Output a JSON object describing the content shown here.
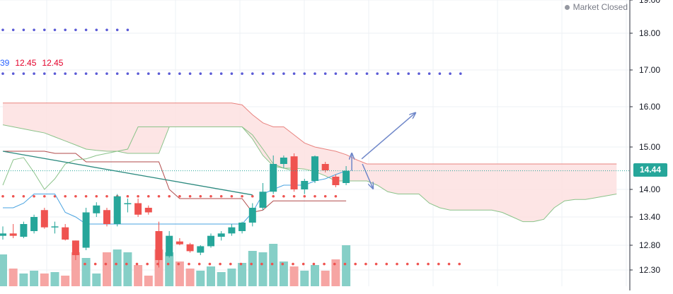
{
  "status": {
    "label": "Market Closed"
  },
  "legend": {
    "values": [
      "39",
      "12.45",
      "12.45"
    ]
  },
  "last_price": "14.44",
  "colors": {
    "up": "#26a69a",
    "down": "#ef5350",
    "vol_up": "#86cfc7",
    "vol_down": "#f6a5a3",
    "cloud_fill": "#fde0e0",
    "cloud_edge": "#e8837f",
    "chikou": "#8bc38a",
    "dots_blue": "#5b5bd6",
    "dots_red": "#ef5350",
    "trendline": "#2e8b80",
    "arrow": "#6f87c9",
    "grid": "#edf0f4"
  },
  "chart_data": {
    "type": "candlestick",
    "y_ticks": [
      "19.00",
      "18.00",
      "17.00",
      "16.00",
      "15.00",
      "14.00",
      "13.40",
      "12.80",
      "12.30"
    ],
    "y_tick_values": [
      19.0,
      18.0,
      17.0,
      16.0,
      15.0,
      14.0,
      13.4,
      12.8,
      12.3
    ],
    "candles": [
      {
        "o": 13.0,
        "h": 13.2,
        "l": 12.92,
        "c": 13.05
      },
      {
        "o": 13.05,
        "h": 13.25,
        "l": 12.95,
        "c": 13.0
      },
      {
        "o": 12.98,
        "h": 13.3,
        "l": 12.95,
        "c": 13.25
      },
      {
        "o": 13.1,
        "h": 13.45,
        "l": 13.05,
        "c": 13.4
      },
      {
        "o": 13.55,
        "h": 13.6,
        "l": 13.15,
        "c": 13.18
      },
      {
        "o": 13.2,
        "h": 13.3,
        "l": 13.05,
        "c": 13.2
      },
      {
        "o": 13.18,
        "h": 13.25,
        "l": 12.9,
        "c": 12.92
      },
      {
        "o": 12.9,
        "h": 12.9,
        "l": 12.5,
        "c": 12.6
      },
      {
        "o": 12.75,
        "h": 13.6,
        "l": 12.7,
        "c": 13.5
      },
      {
        "o": 13.48,
        "h": 13.72,
        "l": 13.4,
        "c": 13.65
      },
      {
        "o": 13.55,
        "h": 13.6,
        "l": 13.2,
        "c": 13.25
      },
      {
        "o": 13.25,
        "h": 13.9,
        "l": 13.2,
        "c": 13.85
      },
      {
        "o": 13.7,
        "h": 13.8,
        "l": 13.5,
        "c": 13.7
      },
      {
        "o": 13.7,
        "h": 13.8,
        "l": 13.4,
        "c": 13.45
      },
      {
        "o": 13.6,
        "h": 13.65,
        "l": 13.45,
        "c": 13.5
      },
      {
        "o": 13.1,
        "h": 13.3,
        "l": 12.35,
        "c": 12.5
      },
      {
        "o": 12.58,
        "h": 13.1,
        "l": 12.55,
        "c": 13.0
      },
      {
        "o": 12.88,
        "h": 12.95,
        "l": 12.8,
        "c": 12.82
      },
      {
        "o": 12.82,
        "h": 12.85,
        "l": 12.65,
        "c": 12.68
      },
      {
        "o": 12.65,
        "h": 12.8,
        "l": 12.6,
        "c": 12.78
      },
      {
        "o": 12.78,
        "h": 13.05,
        "l": 12.75,
        "c": 13.0
      },
      {
        "o": 12.98,
        "h": 13.1,
        "l": 12.9,
        "c": 13.05
      },
      {
        "o": 13.05,
        "h": 13.25,
        "l": 13.0,
        "c": 13.18
      },
      {
        "o": 13.1,
        "h": 13.3,
        "l": 13.05,
        "c": 13.28
      },
      {
        "o": 13.28,
        "h": 13.7,
        "l": 13.2,
        "c": 13.6
      },
      {
        "o": 13.6,
        "h": 14.15,
        "l": 13.55,
        "c": 13.95
      },
      {
        "o": 13.95,
        "h": 14.8,
        "l": 13.9,
        "c": 14.6
      },
      {
        "o": 14.6,
        "h": 14.8,
        "l": 14.5,
        "c": 14.75
      },
      {
        "o": 14.78,
        "h": 14.85,
        "l": 13.95,
        "c": 14.0
      },
      {
        "o": 14.0,
        "h": 14.25,
        "l": 13.9,
        "c": 14.2
      },
      {
        "o": 14.2,
        "h": 14.8,
        "l": 14.15,
        "c": 14.78
      },
      {
        "o": 14.6,
        "h": 14.65,
        "l": 14.4,
        "c": 14.45
      },
      {
        "o": 14.3,
        "h": 14.35,
        "l": 14.05,
        "c": 14.1
      },
      {
        "o": 14.15,
        "h": 14.55,
        "l": 14.1,
        "c": 14.44
      }
    ],
    "volume": [
      45,
      25,
      18,
      22,
      18,
      20,
      15,
      48,
      40,
      18,
      48,
      52,
      48,
      30,
      15,
      52,
      48,
      35,
      25,
      22,
      28,
      20,
      25,
      33,
      50,
      48,
      60,
      35,
      28,
      22,
      30,
      22,
      38,
      58
    ],
    "cloud_upper": [
      16.1,
      16.1,
      16.1,
      16.1,
      16.1,
      16.1,
      16.1,
      16.1,
      16.1,
      16.1,
      16.1,
      16.1,
      16.1,
      16.1,
      16.1,
      16.1,
      16.1,
      16.1,
      16.1,
      16.1,
      16.1,
      16.1,
      16.1,
      16.05,
      15.8,
      15.6,
      15.5,
      15.5,
      15.3,
      15.1,
      15.0,
      14.95,
      14.9,
      14.82,
      14.7,
      14.6,
      14.6,
      14.6,
      14.6,
      14.6,
      14.6,
      14.6,
      14.6,
      14.6,
      14.6,
      14.6,
      14.6,
      14.6,
      14.6,
      14.6,
      14.6,
      14.6,
      14.6,
      14.6,
      14.6,
      14.6,
      14.6,
      14.6,
      14.6,
      14.6
    ],
    "cloud_lower": [
      15.55,
      15.5,
      15.45,
      15.4,
      15.35,
      15.25,
      15.15,
      15.05,
      14.95,
      14.92,
      14.9,
      14.9,
      14.85,
      14.85,
      14.85,
      14.85,
      15.5,
      15.5,
      15.5,
      15.5,
      15.5,
      15.5,
      15.5,
      15.5,
      15.2,
      14.8,
      14.55,
      14.5,
      14.5,
      14.48,
      14.42,
      14.32,
      14.2,
      14.2,
      14.2,
      14.2,
      14.1,
      13.95,
      13.9,
      13.9,
      13.9,
      13.7,
      13.6,
      13.55,
      13.55,
      13.55,
      13.55,
      13.55,
      13.5,
      13.4,
      13.3,
      13.3,
      13.35,
      13.6,
      13.75,
      13.78,
      13.78,
      13.82,
      13.86,
      13.9
    ],
    "tenkan": [
      13.6,
      13.6,
      13.7,
      13.9,
      13.9,
      13.9,
      13.5,
      13.4,
      13.25,
      13.25,
      13.25,
      13.25,
      13.25,
      13.25,
      13.25,
      13.25,
      13.25,
      13.25,
      13.25,
      13.25,
      13.25,
      13.25,
      13.25,
      13.25,
      13.5,
      13.9,
      14.0,
      14.1,
      14.1,
      14.1,
      14.2,
      14.25,
      14.35,
      14.44
    ],
    "kijun": [
      14.9,
      14.9,
      14.9,
      14.9,
      14.9,
      14.85,
      14.85,
      14.85,
      14.65,
      14.65,
      14.65,
      14.65,
      14.65,
      14.65,
      14.65,
      14.65,
      14.0,
      13.8,
      13.8,
      13.8,
      13.8,
      13.8,
      13.8,
      13.8,
      13.5,
      13.55,
      13.75,
      13.75,
      13.75,
      13.75,
      13.75,
      13.75,
      13.75,
      13.75
    ],
    "chikou": [
      14.1,
      14.7,
      14.75,
      14.4,
      14.0,
      14.25,
      14.6,
      14.7,
      14.72,
      14.8,
      14.85,
      14.9,
      14.95,
      15.5,
      15.5,
      15.5,
      15.5,
      15.5,
      15.5,
      15.5,
      15.5,
      15.5,
      15.5,
      15.5,
      15.3,
      14.95,
      14.6,
      14.5,
      14.44
    ],
    "resistance_dots_blue": [
      18.1,
      16.9
    ],
    "support_dots_red": [
      13.85,
      12.42
    ],
    "trendline": {
      "from_index": 0,
      "from_value": 14.9,
      "to_index": 24,
      "to_value": 13.88
    }
  }
}
